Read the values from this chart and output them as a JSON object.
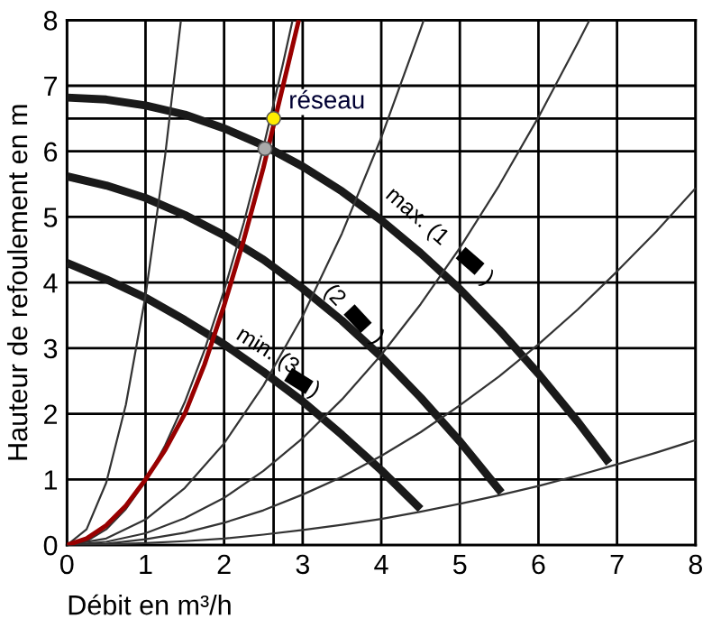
{
  "chart_data": {
    "type": "line",
    "xlabel": "Débit en m³/h",
    "ylabel": "Hauteur de refoulement en m",
    "xlim": [
      0,
      8
    ],
    "ylim": [
      0,
      8
    ],
    "xticks": [
      0,
      1,
      2,
      3,
      4,
      5,
      6,
      7,
      8
    ],
    "yticks": [
      0,
      1,
      2,
      3,
      4,
      5,
      6,
      7,
      8
    ],
    "grid": true,
    "marker": "none",
    "line_style": "solid",
    "series": [
      {
        "color": "#1a1a1a",
        "x": [
          0,
          0.5,
          1,
          1.5,
          2,
          2.5,
          3,
          3.5,
          4,
          4.5,
          5,
          5.5,
          6,
          6.5,
          6.9
        ],
        "values": [
          6.82,
          6.79,
          6.7,
          6.56,
          6.35,
          6.09,
          5.77,
          5.39,
          4.95,
          4.45,
          3.9,
          3.28,
          2.61,
          1.88,
          1.25
        ]
      },
      {
        "color": "#1a1a1a",
        "x": [
          0,
          0.5,
          1,
          1.5,
          2,
          2.5,
          3,
          3.5,
          4,
          4.5,
          5,
          5.53
        ],
        "values": [
          5.62,
          5.48,
          5.29,
          5.03,
          4.72,
          4.35,
          3.91,
          3.42,
          2.87,
          2.25,
          1.58,
          0.8
        ]
      },
      {
        "color": "#1a1a1a",
        "x": [
          0,
          0.5,
          1,
          1.5,
          2,
          2.5,
          3,
          3.5,
          4,
          4.5
        ],
        "values": [
          4.3,
          4.05,
          3.77,
          3.43,
          3.06,
          2.64,
          2.19,
          1.68,
          1.14,
          0.55
        ]
      },
      {
        "color": "#333333",
        "x": [
          0,
          0.25,
          0.5,
          0.75,
          1,
          1.25,
          1.45
        ],
        "values": [
          0,
          0.24,
          0.95,
          2.14,
          3.8,
          5.94,
          7.99
        ]
      },
      {
        "color": "#333333",
        "x": [
          0,
          0.25,
          0.5,
          0.75,
          1,
          1.25,
          1.5,
          1.75,
          2,
          2.25,
          2.5,
          2.75,
          2.87
        ],
        "values": [
          0,
          0.06,
          0.24,
          0.55,
          0.97,
          1.52,
          2.18,
          2.97,
          3.88,
          4.91,
          6.06,
          7.34,
          7.99
        ]
      },
      {
        "color": "#333333",
        "x": [
          0,
          0.5,
          1,
          1.5,
          2,
          2.5,
          3,
          3.5,
          4,
          4.5,
          4.54
        ],
        "values": [
          0,
          0.1,
          0.39,
          0.87,
          1.55,
          2.43,
          3.49,
          4.75,
          6.21,
          7.86,
          8.0
        ]
      },
      {
        "color": "#333333",
        "x": [
          0,
          0.5,
          1,
          1.5,
          2,
          2.5,
          3,
          3.5,
          4,
          4.5,
          5,
          5.5,
          6,
          6.5,
          6.65
        ],
        "values": [
          0,
          0.05,
          0.18,
          0.41,
          0.72,
          1.13,
          1.63,
          2.22,
          2.9,
          3.67,
          4.53,
          5.48,
          6.52,
          7.65,
          8.0
        ]
      },
      {
        "color": "#333333",
        "x": [
          0,
          0.5,
          1,
          1.5,
          2,
          2.5,
          3,
          3.5,
          4,
          4.5,
          5,
          5.5,
          6,
          6.5,
          7,
          7.5,
          8
        ],
        "values": [
          0,
          0.02,
          0.09,
          0.19,
          0.34,
          0.53,
          0.77,
          1.04,
          1.36,
          1.72,
          2.13,
          2.57,
          3.06,
          3.59,
          4.17,
          4.78,
          5.44
        ]
      },
      {
        "color": "#333333",
        "x": [
          0,
          0.5,
          1,
          1.5,
          2,
          2.5,
          3,
          3.5,
          4,
          4.5,
          5,
          5.5,
          6,
          6.5,
          7,
          7.5,
          8
        ],
        "values": [
          0,
          0.01,
          0.03,
          0.06,
          0.1,
          0.16,
          0.23,
          0.31,
          0.4,
          0.51,
          0.63,
          0.76,
          0.9,
          1.06,
          1.23,
          1.41,
          1.6
        ]
      },
      {
        "color": "#990000",
        "x": [
          0,
          0.25,
          0.5,
          0.75,
          1,
          1.25,
          1.5,
          1.75,
          2,
          2.25,
          2.5,
          2.65,
          2.8,
          2.95
        ],
        "values": [
          0,
          0.1,
          0.3,
          0.6,
          1.0,
          1.45,
          2.0,
          2.75,
          3.65,
          4.65,
          5.75,
          6.5,
          7.25,
          8.0
        ]
      },
      {
        "type": "scatter",
        "marker": "circle",
        "color": "#aaaaaa",
        "x": [
          2.52
        ],
        "values": [
          6.04
        ]
      },
      {
        "type": "scatter",
        "marker": "circle",
        "color": "#ffee00",
        "x": [
          2.63
        ],
        "values": [
          6.5
        ]
      }
    ],
    "ref_lines": [
      {
        "axis": "x",
        "value": 2.63,
        "color": "#000000"
      },
      {
        "axis": "y",
        "value": 6.5,
        "color": "#000000"
      }
    ],
    "annotations": [
      {
        "text": "réseau",
        "x": 2.63,
        "y": 6.5
      },
      "max. (1",
      ")",
      "(2",
      ")",
      "min. (3",
      ")"
    ]
  }
}
